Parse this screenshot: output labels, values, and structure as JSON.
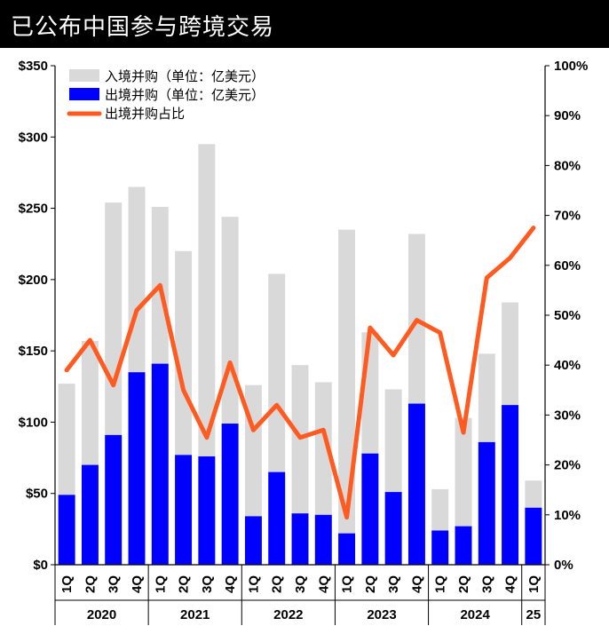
{
  "header": {
    "title": "已公布中国参与跨境交易"
  },
  "colors": {
    "inbound": "#d9d9d9",
    "outbound": "#0000ff",
    "ratio": "#ff5a1f"
  },
  "chart_data": {
    "type": "bar",
    "title": "已公布中国参与跨境交易",
    "categories": [
      "1Q",
      "2Q",
      "3Q",
      "4Q",
      "1Q",
      "2Q",
      "3Q",
      "4Q",
      "1Q",
      "2Q",
      "3Q",
      "4Q",
      "1Q",
      "2Q",
      "3Q",
      "4Q",
      "1Q",
      "2Q",
      "3Q",
      "4Q",
      "1Q"
    ],
    "years": [
      {
        "label": "2020",
        "count": 4
      },
      {
        "label": "2021",
        "count": 4
      },
      {
        "label": "2022",
        "count": 4
      },
      {
        "label": "2023",
        "count": 4
      },
      {
        "label": "2024",
        "count": 4
      },
      {
        "label": "25",
        "count": 1
      }
    ],
    "series": [
      {
        "name": "入境并购（单位：亿美元）",
        "axis": "left",
        "kind": "bar",
        "values": [
          127,
          157,
          254,
          265,
          251,
          220,
          295,
          244,
          126,
          204,
          140,
          128,
          235,
          163,
          123,
          232,
          53,
          103,
          148,
          184,
          59
        ]
      },
      {
        "name": "出境并购（单位：亿美元）",
        "axis": "left",
        "kind": "bar",
        "values": [
          49,
          70,
          91,
          135,
          141,
          77,
          76,
          99,
          34,
          65,
          36,
          35,
          22,
          78,
          51,
          113,
          24,
          27,
          86,
          112,
          40
        ]
      },
      {
        "name": "出境并购占比",
        "axis": "right",
        "kind": "line",
        "values": [
          0.39,
          0.45,
          0.36,
          0.51,
          0.56,
          0.35,
          0.255,
          0.405,
          0.27,
          0.32,
          0.255,
          0.27,
          0.095,
          0.475,
          0.42,
          0.49,
          0.465,
          0.265,
          0.575,
          0.615,
          0.675
        ]
      }
    ],
    "y_left": {
      "min": 0,
      "max": 350,
      "ticks": [
        "$0",
        "$50",
        "$100",
        "$150",
        "$200",
        "$250",
        "$300",
        "$350"
      ]
    },
    "y_right": {
      "min": 0,
      "max": 1,
      "ticks": [
        "0%",
        "10%",
        "20%",
        "30%",
        "40%",
        "50%",
        "60%",
        "70%",
        "80%",
        "90%",
        "100%"
      ]
    },
    "legend_position": "top-left",
    "grid": false
  }
}
